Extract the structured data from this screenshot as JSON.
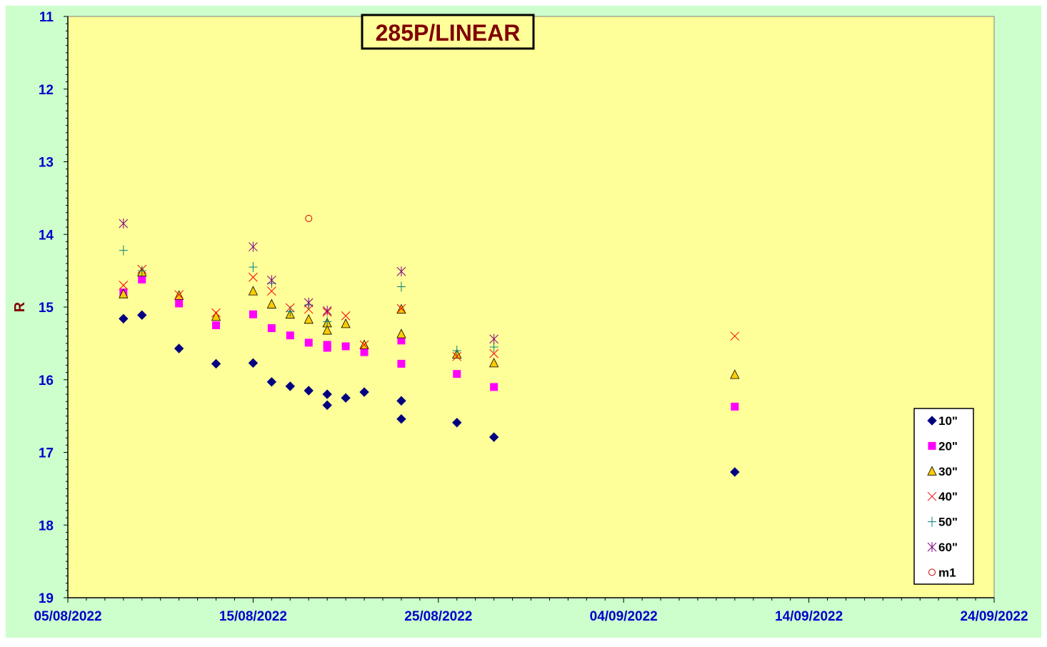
{
  "chart_data": {
    "type": "scatter",
    "title": "285P/LINEAR",
    "ylabel": "R",
    "xlabel": "",
    "x_axis": {
      "type": "date",
      "min": "2022-08-05",
      "max": "2022-09-24",
      "labels": [
        "05/08/2022",
        "15/08/2022",
        "25/08/2022",
        "04/09/2022",
        "14/09/2022",
        "24/09/2022"
      ]
    },
    "y_axis": {
      "min": 11,
      "max": 19,
      "reversed": true,
      "labels": [
        "11",
        "12",
        "13",
        "14",
        "15",
        "16",
        "17",
        "18",
        "19"
      ]
    },
    "grid": false,
    "legend_position": "bottom-right",
    "colors": {
      "outer_background": "#ccffcc",
      "plot_background": "#ffff99",
      "tick_label": "#0000cc",
      "ylabel": "#800000",
      "title": "#800000"
    },
    "series": [
      {
        "name": "10\"",
        "marker": "diamond",
        "color": "#000080",
        "points": [
          [
            "2022-08-08",
            15.16
          ],
          [
            "2022-08-09",
            15.11
          ],
          [
            "2022-08-11",
            15.57
          ],
          [
            "2022-08-13",
            15.78
          ],
          [
            "2022-08-15",
            15.77
          ],
          [
            "2022-08-16",
            16.03
          ],
          [
            "2022-08-17",
            16.09
          ],
          [
            "2022-08-18",
            16.15
          ],
          [
            "2022-08-19",
            16.2
          ],
          [
            "2022-08-19",
            16.35
          ],
          [
            "2022-08-20",
            16.25
          ],
          [
            "2022-08-21",
            16.17
          ],
          [
            "2022-08-23",
            16.29
          ],
          [
            "2022-08-23",
            16.54
          ],
          [
            "2022-08-26",
            16.59
          ],
          [
            "2022-08-28",
            16.79
          ],
          [
            "2022-09-10",
            17.27
          ]
        ]
      },
      {
        "name": "20\"",
        "marker": "square",
        "color": "#ff00ff",
        "points": [
          [
            "2022-08-08",
            14.8
          ],
          [
            "2022-08-09",
            14.62
          ],
          [
            "2022-08-11",
            14.95
          ],
          [
            "2022-08-13",
            15.25
          ],
          [
            "2022-08-15",
            15.1
          ],
          [
            "2022-08-16",
            15.29
          ],
          [
            "2022-08-17",
            15.39
          ],
          [
            "2022-08-18",
            15.49
          ],
          [
            "2022-08-19",
            15.52
          ],
          [
            "2022-08-19",
            15.56
          ],
          [
            "2022-08-20",
            15.54
          ],
          [
            "2022-08-21",
            15.62
          ],
          [
            "2022-08-23",
            15.46
          ],
          [
            "2022-08-23",
            15.78
          ],
          [
            "2022-08-26",
            15.92
          ],
          [
            "2022-08-28",
            16.1
          ],
          [
            "2022-09-10",
            16.37
          ]
        ]
      },
      {
        "name": "30\"",
        "marker": "triangle",
        "color": "#ffcc00",
        "points": [
          [
            "2022-08-08",
            14.82
          ],
          [
            "2022-08-09",
            14.52
          ],
          [
            "2022-08-11",
            14.84
          ],
          [
            "2022-08-13",
            15.13
          ],
          [
            "2022-08-15",
            14.78
          ],
          [
            "2022-08-16",
            14.96
          ],
          [
            "2022-08-17",
            15.1
          ],
          [
            "2022-08-18",
            15.17
          ],
          [
            "2022-08-19",
            15.22
          ],
          [
            "2022-08-19",
            15.32
          ],
          [
            "2022-08-20",
            15.23
          ],
          [
            "2022-08-21",
            15.52
          ],
          [
            "2022-08-23",
            15.03
          ],
          [
            "2022-08-23",
            15.37
          ],
          [
            "2022-08-26",
            15.65
          ],
          [
            "2022-08-28",
            15.77
          ],
          [
            "2022-09-10",
            15.93
          ]
        ]
      },
      {
        "name": "40\"",
        "marker": "x",
        "color": "#ff0000",
        "points": [
          [
            "2022-08-08",
            14.7
          ],
          [
            "2022-08-09",
            14.48
          ],
          [
            "2022-08-11",
            14.83
          ],
          [
            "2022-08-13",
            15.08
          ],
          [
            "2022-08-15",
            14.59
          ],
          [
            "2022-08-16",
            14.78
          ],
          [
            "2022-08-17",
            15.01
          ],
          [
            "2022-08-18",
            15.03
          ],
          [
            "2022-08-19",
            15.07
          ],
          [
            "2022-08-20",
            15.12
          ],
          [
            "2022-08-21",
            15.52
          ],
          [
            "2022-08-23",
            15.02
          ],
          [
            "2022-08-26",
            15.68
          ],
          [
            "2022-08-28",
            15.64
          ],
          [
            "2022-09-10",
            15.4
          ]
        ]
      },
      {
        "name": "50\"",
        "marker": "plus",
        "color": "#008080",
        "points": [
          [
            "2022-08-08",
            14.22
          ],
          [
            "2022-08-09",
            14.5
          ],
          [
            "2022-08-15",
            14.45
          ],
          [
            "2022-08-16",
            14.67
          ],
          [
            "2022-08-17",
            15.06
          ],
          [
            "2022-08-18",
            14.97
          ],
          [
            "2022-08-19",
            15.2
          ],
          [
            "2022-08-23",
            14.72
          ],
          [
            "2022-08-26",
            15.6
          ],
          [
            "2022-08-28",
            15.55
          ]
        ]
      },
      {
        "name": "60\"",
        "marker": "star",
        "color": "#800080",
        "points": [
          [
            "2022-08-08",
            13.85
          ],
          [
            "2022-08-15",
            14.17
          ],
          [
            "2022-08-16",
            14.63
          ],
          [
            "2022-08-18",
            14.94
          ],
          [
            "2022-08-19",
            15.05
          ],
          [
            "2022-08-23",
            14.51
          ],
          [
            "2022-08-28",
            15.44
          ]
        ]
      },
      {
        "name": "m1",
        "marker": "circle",
        "color": "#cc0000",
        "points": [
          [
            "2022-08-18",
            13.78
          ]
        ]
      }
    ]
  }
}
